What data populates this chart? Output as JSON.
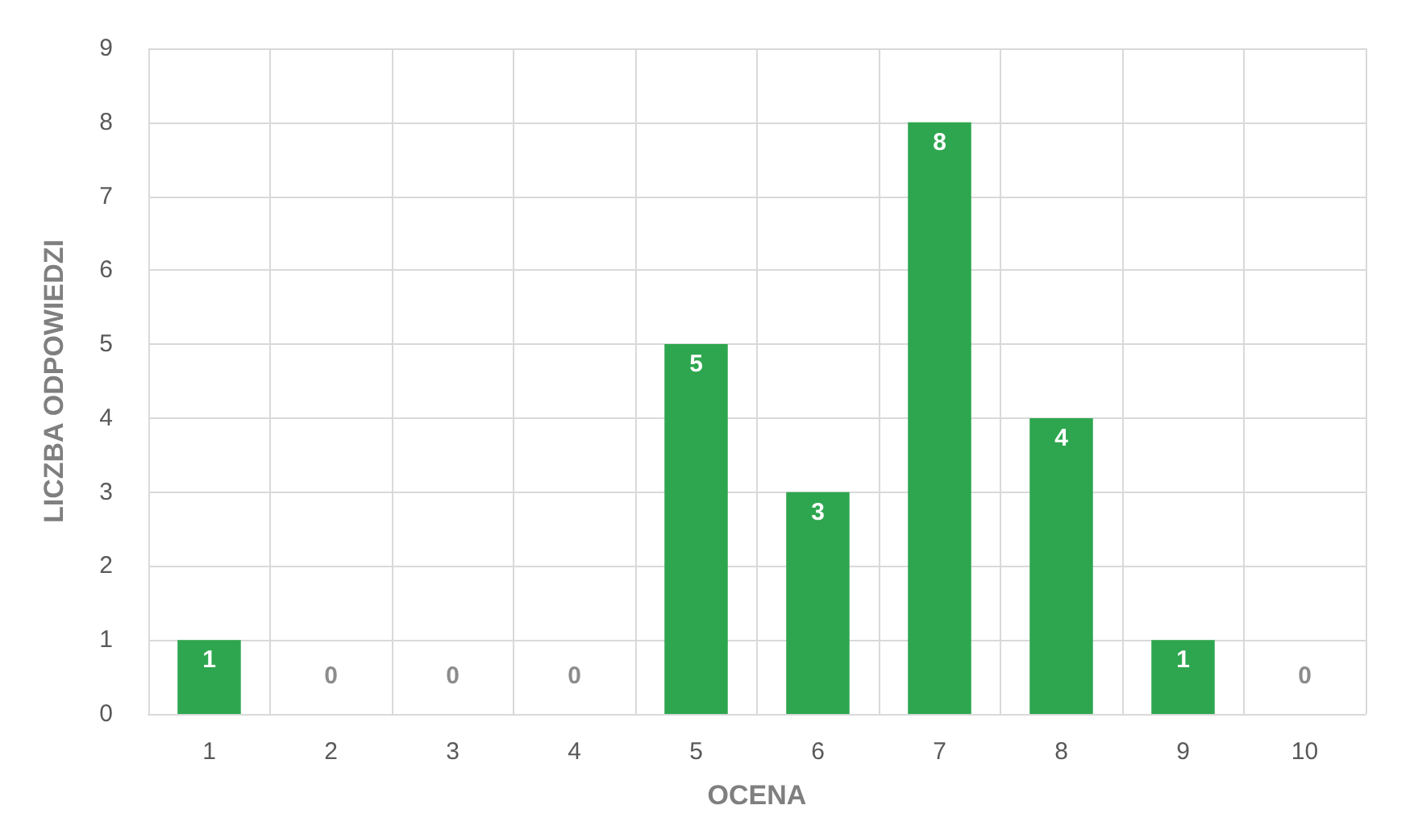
{
  "chart_data": {
    "type": "bar",
    "xlabel": "OCENA",
    "ylabel": "LICZBA ODPOWIEDZI",
    "categories": [
      "1",
      "2",
      "3",
      "4",
      "5",
      "6",
      "7",
      "8",
      "9",
      "10"
    ],
    "values": [
      1,
      0,
      0,
      0,
      5,
      3,
      8,
      4,
      1,
      0
    ],
    "color": "#2ea64f",
    "ylim": [
      0,
      9
    ],
    "yticks": [
      0,
      1,
      2,
      3,
      4,
      5,
      6,
      7,
      8,
      9
    ],
    "grid": true,
    "data_labels": true
  }
}
